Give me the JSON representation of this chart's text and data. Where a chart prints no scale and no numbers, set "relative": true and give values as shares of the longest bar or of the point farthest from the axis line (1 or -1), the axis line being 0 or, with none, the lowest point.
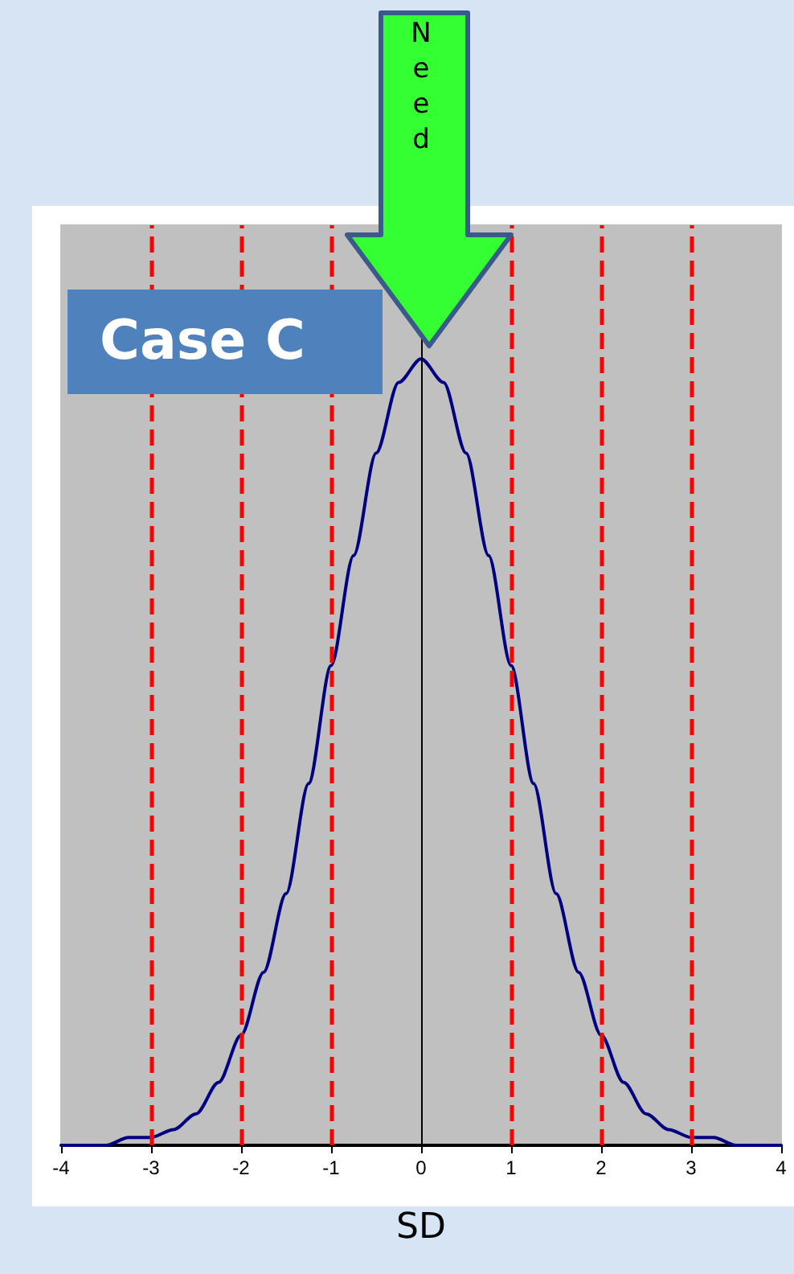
{
  "chart_data": {
    "type": "line",
    "xlabel": "SD",
    "relative": true,
    "x": [
      -4,
      -3.75,
      -3.5,
      -3.25,
      -3,
      -2.75,
      -2.5,
      -2.25,
      -2,
      -1.75,
      -1.5,
      -1.25,
      -1,
      -0.75,
      -0.5,
      -0.25,
      0,
      0.25,
      0.5,
      0.75,
      1,
      1.25,
      1.5,
      1.75,
      2,
      2.25,
      2.5,
      2.75,
      3,
      3.25,
      3.5,
      3.75,
      4
    ],
    "series": [
      {
        "color": "#000080",
        "values": [
          0.0,
          0.0,
          0.0,
          0.01,
          0.01,
          0.02,
          0.04,
          0.08,
          0.14,
          0.22,
          0.32,
          0.46,
          0.61,
          0.75,
          0.88,
          0.97,
          1.0,
          0.97,
          0.88,
          0.75,
          0.61,
          0.46,
          0.32,
          0.22,
          0.14,
          0.08,
          0.04,
          0.02,
          0.01,
          0.01,
          0.0,
          0.0,
          0.0
        ]
      }
    ],
    "xlim": [
      -4,
      4
    ],
    "xticks": [
      -4,
      -3,
      -2,
      -1,
      0,
      1,
      2,
      3,
      4
    ],
    "ref_lines": [
      {
        "axis": "x",
        "value": -3,
        "color": "#ff0000",
        "line_style": "dashed"
      },
      {
        "axis": "x",
        "value": -2,
        "color": "#ff0000",
        "line_style": "dashed"
      },
      {
        "axis": "x",
        "value": -1,
        "color": "#ff0000",
        "line_style": "dashed"
      },
      {
        "axis": "x",
        "value": 0,
        "color": "#000000",
        "line_style": "solid"
      },
      {
        "axis": "x",
        "value": 1,
        "color": "#ff0000",
        "line_style": "dashed"
      },
      {
        "axis": "x",
        "value": 2,
        "color": "#ff0000",
        "line_style": "dashed"
      },
      {
        "axis": "x",
        "value": 3,
        "color": "#ff0000",
        "line_style": "dashed"
      }
    ],
    "annotations": [
      "Case C",
      "Need"
    ],
    "grid": false,
    "marker": "none",
    "line_style": "solid"
  }
}
